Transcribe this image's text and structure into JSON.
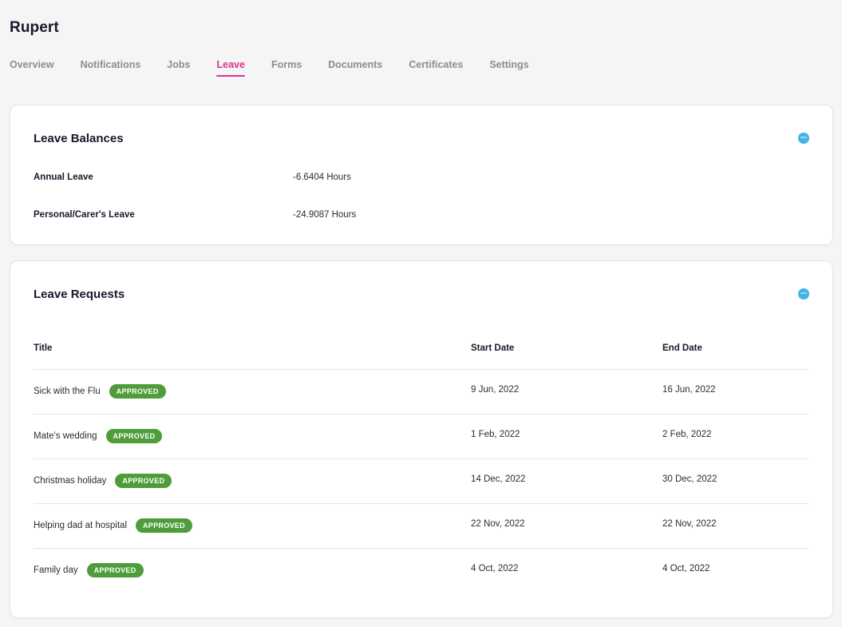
{
  "page": {
    "title": "Rupert"
  },
  "tabs": [
    {
      "label": "Overview"
    },
    {
      "label": "Notifications"
    },
    {
      "label": "Jobs"
    },
    {
      "label": "Leave",
      "active": true
    },
    {
      "label": "Forms"
    },
    {
      "label": "Documents"
    },
    {
      "label": "Certificates"
    },
    {
      "label": "Settings"
    }
  ],
  "balances": {
    "title": "Leave Balances",
    "icon": "xero-icon",
    "icon_text": "xero",
    "rows": [
      {
        "label": "Annual Leave",
        "value": "-6.6404 Hours"
      },
      {
        "label": "Personal/Carer's Leave",
        "value": "-24.9087 Hours"
      }
    ]
  },
  "requests": {
    "title": "Leave Requests",
    "icon": "xero-icon",
    "icon_text": "xero",
    "columns": {
      "title": "Title",
      "start": "Start Date",
      "end": "End Date"
    },
    "rows": [
      {
        "title": "Sick with the Flu",
        "status": "APPROVED",
        "start": "9 Jun, 2022",
        "end": "16 Jun, 2022"
      },
      {
        "title": "Mate's wedding",
        "status": "APPROVED",
        "start": "1 Feb, 2022",
        "end": "2 Feb, 2022"
      },
      {
        "title": "Christmas holiday",
        "status": "APPROVED",
        "start": "14 Dec, 2022",
        "end": "30 Dec, 2022"
      },
      {
        "title": "Helping dad at hospital",
        "status": "APPROVED",
        "start": "22 Nov, 2022",
        "end": "22 Nov, 2022"
      },
      {
        "title": "Family day",
        "status": "APPROVED",
        "start": "4 Oct, 2022",
        "end": "4 Oct, 2022"
      }
    ]
  },
  "colors": {
    "accent": "#d9368b",
    "approved": "#4f9d3a",
    "xero": "#41b3e6"
  }
}
